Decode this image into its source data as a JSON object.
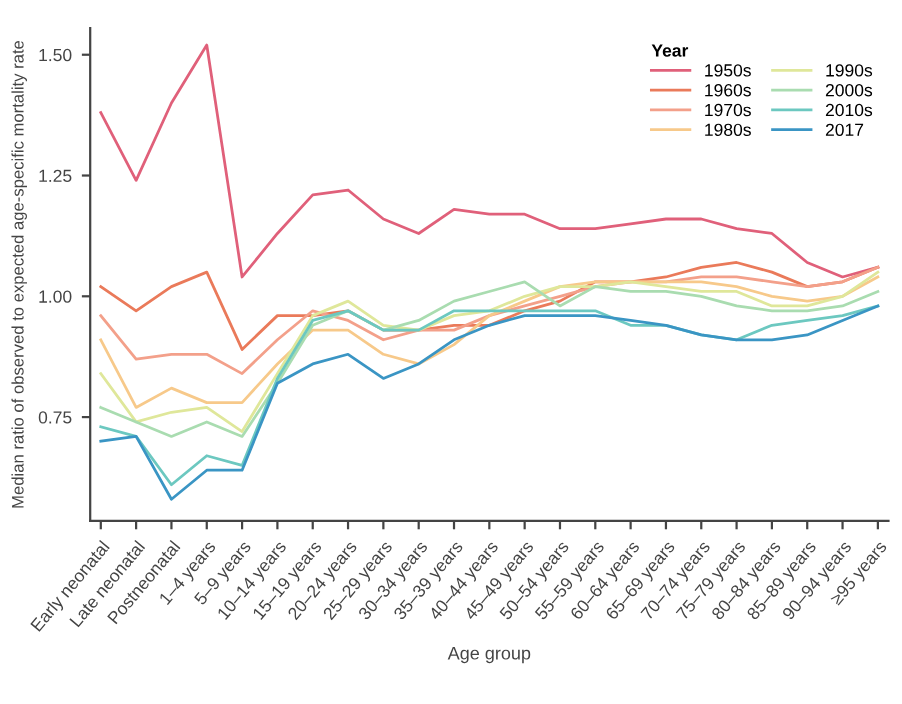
{
  "chart_data": {
    "type": "line",
    "xlabel": "Age group",
    "ylabel": "Median ratio of observed to expected age-specific mortality rate",
    "legend_title": "Year",
    "legend": "top right",
    "grid": false,
    "marker": "none",
    "line_style": "solid",
    "categories": [
      "Early neonatal",
      "Late neonatal",
      "Postneonatal",
      "1–4 years",
      "5–9 years",
      "10–14 years",
      "15–19 years",
      "20–24 years",
      "25–29 years",
      "30–34 years",
      "35–39 years",
      "40–44 years",
      "45–49 years",
      "50–54 years",
      "55–59 years",
      "60–64 years",
      "65–69 years",
      "70–74 years",
      "75–79 years",
      "80–84 years",
      "85–89 years",
      "90–94 years",
      "≥95 years"
    ],
    "ylim": [
      0.535,
      1.555
    ],
    "yticks": [
      {
        "value": 0.75,
        "label": "0.75"
      },
      {
        "value": 1.0,
        "label": "1.00"
      },
      {
        "value": 1.25,
        "label": "1.25"
      },
      {
        "value": 1.5,
        "label": "1.50"
      }
    ],
    "series": [
      {
        "name": "1950s",
        "color": "#e0607a",
        "values": [
          1.38,
          1.24,
          1.4,
          1.52,
          1.04,
          1.13,
          1.21,
          1.22,
          1.16,
          1.13,
          1.18,
          1.17,
          1.17,
          1.14,
          1.14,
          1.15,
          1.16,
          1.16,
          1.14,
          1.13,
          1.07,
          1.04,
          1.06
        ]
      },
      {
        "name": "1960s",
        "color": "#ea7a5a",
        "values": [
          1.02,
          0.97,
          1.02,
          1.05,
          0.89,
          0.96,
          0.96,
          0.97,
          0.93,
          0.93,
          0.94,
          0.94,
          0.97,
          0.99,
          1.03,
          1.03,
          1.04,
          1.06,
          1.07,
          1.05,
          1.02,
          1.03,
          1.06
        ]
      },
      {
        "name": "1970s",
        "color": "#f3a08a",
        "values": [
          0.96,
          0.87,
          0.88,
          0.88,
          0.84,
          0.91,
          0.97,
          0.95,
          0.91,
          0.93,
          0.93,
          0.96,
          0.98,
          1.0,
          1.02,
          1.03,
          1.03,
          1.04,
          1.04,
          1.03,
          1.02,
          1.03,
          1.06
        ]
      },
      {
        "name": "1980s",
        "color": "#f7c98a",
        "values": [
          0.91,
          0.77,
          0.81,
          0.78,
          0.78,
          0.86,
          0.93,
          0.93,
          0.88,
          0.86,
          0.9,
          0.96,
          0.99,
          1.02,
          1.03,
          1.03,
          1.03,
          1.03,
          1.02,
          1.0,
          0.99,
          1.0,
          1.04
        ]
      },
      {
        "name": "1990s",
        "color": "#dfe79a",
        "values": [
          0.84,
          0.74,
          0.76,
          0.77,
          0.72,
          0.84,
          0.96,
          0.99,
          0.94,
          0.93,
          0.96,
          0.97,
          1.0,
          1.02,
          1.02,
          1.03,
          1.02,
          1.01,
          1.01,
          0.98,
          0.98,
          1.0,
          1.05
        ]
      },
      {
        "name": "2000s",
        "color": "#a9dcb0",
        "values": [
          0.77,
          0.74,
          0.71,
          0.74,
          0.71,
          0.82,
          0.94,
          0.97,
          0.93,
          0.95,
          0.99,
          1.01,
          1.03,
          0.98,
          1.02,
          1.01,
          1.01,
          1.0,
          0.98,
          0.97,
          0.97,
          0.98,
          1.01
        ]
      },
      {
        "name": "2010s",
        "color": "#6cc8c0",
        "values": [
          0.73,
          0.71,
          0.61,
          0.67,
          0.65,
          0.83,
          0.95,
          0.97,
          0.93,
          0.93,
          0.97,
          0.97,
          0.97,
          0.97,
          0.97,
          0.94,
          0.94,
          0.92,
          0.91,
          0.94,
          0.95,
          0.96,
          0.98
        ]
      },
      {
        "name": "2017",
        "color": "#3a95c4",
        "values": [
          0.7,
          0.71,
          0.58,
          0.64,
          0.64,
          0.82,
          0.86,
          0.88,
          0.83,
          0.86,
          0.91,
          0.94,
          0.96,
          0.96,
          0.96,
          0.95,
          0.94,
          0.92,
          0.91,
          0.91,
          0.92,
          0.95,
          0.98
        ]
      }
    ]
  }
}
